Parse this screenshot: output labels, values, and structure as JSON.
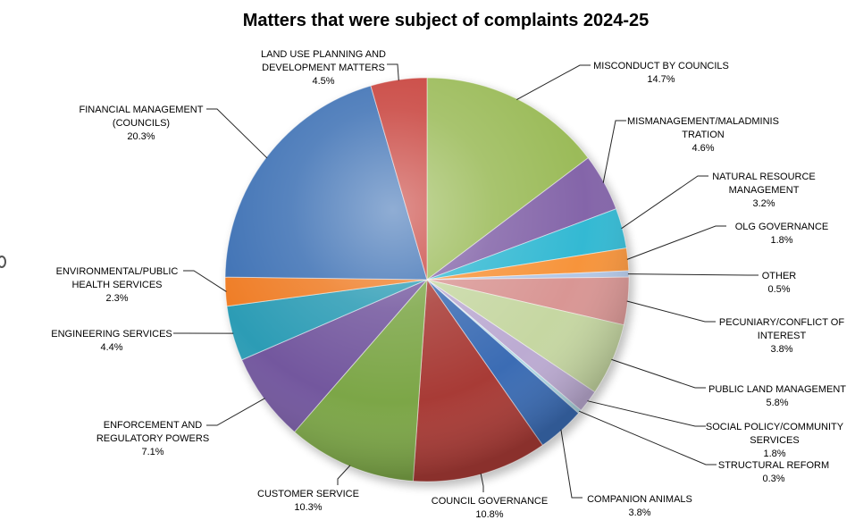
{
  "title": "Matters that were subject of complaints 2024-25",
  "background_color": "#FFFFFF",
  "text_color": "#000000",
  "leader_line_color": "#000000",
  "chart_data": {
    "type": "pie",
    "title": "Matters that were subject of complaints 2024-25",
    "unit": "%",
    "start_angle_deg": 0,
    "direction": "clockwise",
    "legend": "none",
    "label_style": "outside-with-leader-lines",
    "style": "3d-beveled-pie-with-shadow",
    "slices": [
      {
        "label": "MISCONDUCT BY COUNCILS",
        "value": 14.7,
        "pct": "14.7%",
        "color": "#9BBB59",
        "lines": [
          "MISCONDUCT BY COUNCILS"
        ]
      },
      {
        "label": "MISMANAGEMENT/MALADMINISTRATION",
        "value": 4.6,
        "pct": "4.6%",
        "color": "#8465A9",
        "lines": [
          "MISMANAGEMENT/MALADMINIS",
          "TRATION"
        ]
      },
      {
        "label": "NATURAL RESOURCE MANAGEMENT",
        "value": 3.2,
        "pct": "3.2%",
        "color": "#33B9D3",
        "lines": [
          "NATURAL RESOURCE",
          "MANAGEMENT"
        ]
      },
      {
        "label": "OLG GOVERNANCE",
        "value": 1.8,
        "pct": "1.8%",
        "color": "#F7943B",
        "lines": [
          "OLG GOVERNANCE"
        ]
      },
      {
        "label": "OTHER",
        "value": 0.5,
        "pct": "0.5%",
        "color": "#B3C7E6",
        "lines": [
          "OTHER"
        ]
      },
      {
        "label": "PECUNIARY/CONFLICT OF INTEREST",
        "value": 3.8,
        "pct": "3.8%",
        "color": "#D99694",
        "lines": [
          "PECUNIARY/CONFLICT OF",
          "INTEREST"
        ]
      },
      {
        "label": "PUBLIC LAND MANAGEMENT",
        "value": 5.8,
        "pct": "5.8%",
        "color": "#C6D7A2",
        "lines": [
          "PUBLIC LAND MANAGEMENT"
        ]
      },
      {
        "label": "SOCIAL POLICY/COMMUNITY SERVICES",
        "value": 1.8,
        "pct": "1.8%",
        "color": "#BCABD2",
        "lines": [
          "SOCIAL POLICY/COMMUNITY",
          "SERVICES"
        ]
      },
      {
        "label": "STRUCTURAL REFORM",
        "value": 0.3,
        "pct": "0.3%",
        "color": "#AFD9E4",
        "lines": [
          "STRUCTURAL REFORM"
        ]
      },
      {
        "label": "COMPANION ANIMALS",
        "value": 3.8,
        "pct": "3.8%",
        "color": "#3B6CB4",
        "lines": [
          "COMPANION ANIMALS"
        ]
      },
      {
        "label": "COUNCIL GOVERNANCE",
        "value": 10.8,
        "pct": "10.8%",
        "color": "#A83B36",
        "lines": [
          "COUNCIL GOVERNANCE"
        ]
      },
      {
        "label": "CUSTOMER SERVICE",
        "value": 10.3,
        "pct": "10.3%",
        "color": "#7CA647",
        "lines": [
          "CUSTOMER SERVICE"
        ]
      },
      {
        "label": "ENFORCEMENT AND REGULATORY POWERS",
        "value": 7.1,
        "pct": "7.1%",
        "color": "#73579E",
        "lines": [
          "ENFORCEMENT AND",
          "REGULATORY POWERS"
        ]
      },
      {
        "label": "ENGINEERING SERVICES",
        "value": 4.4,
        "pct": "4.4%",
        "color": "#2C9CB5",
        "lines": [
          "ENGINEERING SERVICES"
        ]
      },
      {
        "label": "ENVIRONMENTAL/PUBLIC HEALTH SERVICES",
        "value": 2.3,
        "pct": "2.3%",
        "color": "#EF7D26",
        "lines": [
          "ENVIRONMENTAL/PUBLIC",
          "HEALTH SERVICES"
        ]
      },
      {
        "label": "FINANCIAL MANAGEMENT (COUNCILS)",
        "value": 20.3,
        "pct": "20.3%",
        "color": "#3F72B5",
        "lines": [
          "FINANCIAL MANAGEMENT",
          "(COUNCILS)"
        ]
      },
      {
        "label": "LAND USE PLANNING AND DEVELOPMENT MATTERS",
        "value": 4.5,
        "pct": "4.5%",
        "color": "#C8423C",
        "lines": [
          "LAND USE PLANNING AND",
          "DEVELOPMENT MATTERS"
        ]
      }
    ]
  }
}
